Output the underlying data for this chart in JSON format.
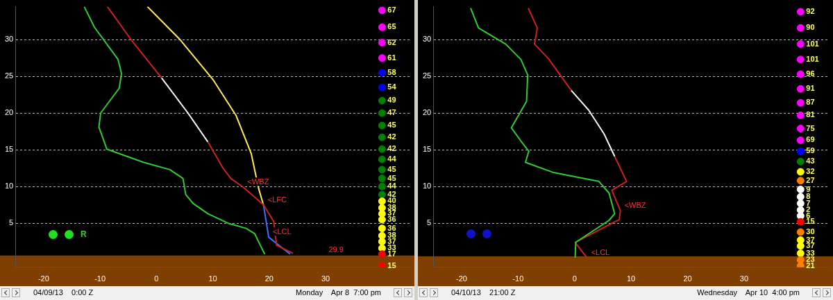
{
  "chart_data": [
    {
      "type": "line",
      "xlim": [
        -25,
        45
      ],
      "ylim": [
        -1,
        34.5
      ],
      "xticks": [
        -20,
        -10,
        0,
        10,
        20,
        30
      ],
      "yticks": [
        5,
        10,
        15,
        20,
        25,
        30
      ],
      "grid": "y",
      "legend": false,
      "marker": "none",
      "bands": [
        {
          "axis": "y",
          "from": -1,
          "to": 0.6,
          "color": "#7f3f00"
        }
      ],
      "series": [
        {
          "color": "#33cc33",
          "x": [
            -12.8,
            -11.0,
            -6.8,
            -6.2,
            -6.6,
            -9.9,
            -10.2,
            -8.8,
            -2.3,
            2.4,
            4.7,
            5.2,
            6.5,
            9.1,
            12.7,
            15.9,
            17.4,
            18.6,
            19.2
          ],
          "values": [
            34.5,
            31.7,
            27.3,
            25.4,
            23.4,
            20,
            18.1,
            15.1,
            13.3,
            12.3,
            11.1,
            8.9,
            7.7,
            6.3,
            5.0,
            4.3,
            3.6,
            1.7,
            0.8
          ]
        },
        {
          "color": "#cc2222",
          "x": [
            -8.7,
            -4.5,
            0.9
          ],
          "values": [
            34.5,
            30,
            24.8
          ]
        },
        {
          "color": "#ffffff",
          "x": [
            0.9,
            5.6,
            9.1
          ],
          "values": [
            24.8,
            20,
            16.1
          ]
        },
        {
          "color": "#cc2222",
          "x": [
            9.1,
            11.8,
            13.2,
            15.4,
            19.0,
            20.8,
            21.3,
            24.2
          ],
          "values": [
            16.1,
            12.5,
            11.1,
            9.9,
            7.5,
            5.2,
            2.0,
            0.9
          ]
        },
        {
          "color": "#ffee55",
          "x": [
            -1.6,
            4.2,
            10.0,
            14.1,
            16.8,
            18.1,
            19.0
          ],
          "values": [
            34.5,
            30,
            24.6,
            19.7,
            14.5,
            9.8,
            7.4
          ]
        },
        {
          "color": "#3377ff",
          "x": [
            19.0,
            19.9,
            23.7
          ],
          "values": [
            7.4,
            3.1,
            0.8
          ]
        },
        {
          "type": "scatter",
          "marker": "circle",
          "x": [
            40,
            40,
            40,
            40,
            40,
            40,
            40,
            40,
            40,
            40,
            40,
            40,
            40,
            40,
            40,
            40,
            40,
            40,
            40,
            40,
            40,
            40,
            40,
            40,
            40,
            40
          ],
          "values": [
            34.0,
            31.7,
            29.6,
            27.5,
            25.5,
            23.5,
            21.7,
            20.0,
            18.3,
            16.7,
            15.1,
            13.7,
            12.3,
            11.1,
            10.0,
            8.9,
            8.0,
            7.1,
            6.3,
            5.5,
            4.3,
            3.3,
            2.5,
            1.6,
            0.8,
            -0.8
          ],
          "colors": [
            "#ff00ff",
            "#ff00ff",
            "#ff00ff",
            "#ff00ff",
            "#0000ff",
            "#0000ff",
            "#008000",
            "#008000",
            "#008000",
            "#008000",
            "#008000",
            "#008000",
            "#008000",
            "#008000",
            "#008000",
            "#008000",
            "#ffff00",
            "#ffff00",
            "#ffff00",
            "#ffff00",
            "#ffff00",
            "#ffff00",
            "#ffff00",
            "#ffff00",
            "#ff0000",
            "#ff0000"
          ]
        }
      ],
      "annotations": [
        "04/09/13    0:00 Z",
        "Monday    Apr 8  7:00 pm",
        "R",
        {
          "text": "<WBZ",
          "x": 15.4,
          "y": 9.9
        },
        {
          "text": "<LFC",
          "x": 19.0,
          "y": 7.4
        },
        {
          "text": "<LCL",
          "x": 19.9,
          "y": 3.1
        },
        {
          "text": "29.9",
          "x": 29.8,
          "y": 0.6
        },
        {
          "text": "67",
          "x": 40,
          "y": 34.0
        },
        {
          "text": "65",
          "x": 40,
          "y": 31.7
        },
        {
          "text": "62",
          "x": 40,
          "y": 29.6
        },
        {
          "text": "61",
          "x": 40,
          "y": 27.5
        },
        {
          "text": "58",
          "x": 40,
          "y": 25.5
        },
        {
          "text": "54",
          "x": 40,
          "y": 23.5
        },
        {
          "text": "49",
          "x": 40,
          "y": 21.7
        },
        {
          "text": "47",
          "x": 40,
          "y": 20.0
        },
        {
          "text": "45",
          "x": 40,
          "y": 18.3
        },
        {
          "text": "42",
          "x": 40,
          "y": 16.7
        },
        {
          "text": "42",
          "x": 40,
          "y": 15.1
        },
        {
          "text": "44",
          "x": 40,
          "y": 13.7
        },
        {
          "text": "45",
          "x": 40,
          "y": 12.3
        },
        {
          "text": "45",
          "x": 40,
          "y": 11.1
        },
        {
          "text": "44",
          "x": 40,
          "y": 10.0
        },
        {
          "text": "42",
          "x": 40,
          "y": 8.9
        },
        {
          "text": "40",
          "x": 40,
          "y": 8.0
        },
        {
          "text": "38",
          "x": 40,
          "y": 7.1
        },
        {
          "text": "37",
          "x": 40,
          "y": 6.3
        },
        {
          "text": "36",
          "x": 40,
          "y": 5.5
        },
        {
          "text": "36",
          "x": 40,
          "y": 4.3
        },
        {
          "text": "38",
          "x": 40,
          "y": 3.3
        },
        {
          "text": "37",
          "x": 40,
          "y": 2.5
        },
        {
          "text": "33",
          "x": 40,
          "y": 1.6
        },
        {
          "text": "17",
          "x": 40,
          "y": 0.8
        },
        {
          "text": "15",
          "x": 40,
          "y": -0.8
        }
      ]
    },
    {
      "type": "line",
      "xlim": [
        -25,
        45
      ],
      "ylim": [
        -1,
        34.5
      ],
      "xticks": [
        -20,
        -10,
        0,
        10,
        20,
        30
      ],
      "yticks": [
        5,
        10,
        15,
        20,
        25,
        30
      ],
      "grid": "y",
      "legend": false,
      "marker": "none",
      "bands": [
        {
          "axis": "y",
          "from": -1,
          "to": 0.5,
          "color": "#7f3f00"
        }
      ],
      "series": [
        {
          "color": "#33cc33",
          "x": [
            -18.4,
            -17.0,
            -12.2,
            -9.5,
            -8.3,
            -8.5,
            -11.2,
            -9.5,
            -8.1,
            -8.7,
            -3.7,
            4.3,
            6.1,
            7.1,
            6.1,
            0.2,
            0.1
          ],
          "values": [
            34.3,
            31.6,
            29.4,
            27.3,
            25.2,
            21.6,
            18.0,
            16.2,
            14.8,
            13.3,
            11.9,
            10.7,
            9.1,
            6.3,
            5.4,
            2.4,
            0.3
          ]
        },
        {
          "color": "#cc2222",
          "x": [
            -8.2,
            -6.6,
            -7.1,
            -4.6,
            -0.6
          ],
          "values": [
            34.3,
            31.6,
            29.4,
            27.4,
            23.1
          ]
        },
        {
          "color": "#ffffff",
          "x": [
            -0.6,
            2.5,
            5.2,
            7.1
          ],
          "values": [
            23.1,
            20.4,
            17.2,
            14.1
          ]
        },
        {
          "color": "#cc2222",
          "x": [
            7.1,
            9.2,
            6.6,
            8.1,
            7.9,
            0.1,
            2.2
          ],
          "values": [
            14.1,
            10.7,
            9.5,
            6.7,
            5.5,
            2.4,
            0.3
          ]
        },
        {
          "type": "scatter",
          "marker": "circle",
          "x": [
            40,
            40,
            40,
            40,
            40,
            40,
            40,
            40,
            40,
            40,
            40,
            40,
            40,
            40,
            40,
            40,
            40,
            40,
            40,
            40,
            40,
            40,
            40,
            40,
            40,
            40
          ],
          "values": [
            33.8,
            31.6,
            29.4,
            27.3,
            25.3,
            23.3,
            21.4,
            19.7,
            17.9,
            16.3,
            14.8,
            13.4,
            12.0,
            10.8,
            9.6,
            8.6,
            7.7,
            6.8,
            6.0,
            5.2,
            3.8,
            2.7,
            1.9,
            0.9,
            0.0,
            -0.8
          ],
          "colors": [
            "#ff00ff",
            "#ff00ff",
            "#ff00ff",
            "#ff00ff",
            "#ff00ff",
            "#ff00ff",
            "#ff00ff",
            "#ff00ff",
            "#ff00ff",
            "#ff00ff",
            "#0000ff",
            "#008000",
            "#ffff00",
            "#ff8000",
            "#ffffff",
            "#ffffff",
            "#ffffff",
            "#ffffff",
            "#ffffff",
            "#ff0000",
            "#ff8000",
            "#ffff00",
            "#ffff00",
            "#ffff00",
            "#ff8000",
            "#ff8000"
          ]
        }
      ],
      "annotations": [
        "04/10/13    21:00 Z",
        "Wednesday    Apr 10  4:00 pm",
        {
          "text": "<WBZ",
          "x": 8.1,
          "y": 6.7
        },
        {
          "text": "<LCL",
          "x": 2.2,
          "y": 0.3
        },
        {
          "text": "92",
          "x": 40,
          "y": 33.8
        },
        {
          "text": "90",
          "x": 40,
          "y": 31.6
        },
        {
          "text": "101",
          "x": 40,
          "y": 29.4
        },
        {
          "text": "101",
          "x": 40,
          "y": 27.3
        },
        {
          "text": "96",
          "x": 40,
          "y": 25.3
        },
        {
          "text": "91",
          "x": 40,
          "y": 23.3
        },
        {
          "text": "87",
          "x": 40,
          "y": 21.4
        },
        {
          "text": "81",
          "x": 40,
          "y": 19.7
        },
        {
          "text": "75",
          "x": 40,
          "y": 17.9
        },
        {
          "text": "69",
          "x": 40,
          "y": 16.3
        },
        {
          "text": "59",
          "x": 40,
          "y": 14.8
        },
        {
          "text": "43",
          "x": 40,
          "y": 13.4
        },
        {
          "text": "32",
          "x": 40,
          "y": 12.0
        },
        {
          "text": "27",
          "x": 40,
          "y": 10.8
        },
        {
          "text": "9",
          "x": 40,
          "y": 9.6
        },
        {
          "text": "8",
          "x": 40,
          "y": 8.6
        },
        {
          "text": "7",
          "x": 40,
          "y": 7.7
        },
        {
          "text": "2",
          "x": 40,
          "y": 6.8
        },
        {
          "text": "6",
          "x": 40,
          "y": 6.0
        },
        {
          "text": "15",
          "x": 40,
          "y": 5.2
        },
        {
          "text": "30",
          "x": 40,
          "y": 3.8
        },
        {
          "text": "37",
          "x": 40,
          "y": 2.7
        },
        {
          "text": "37",
          "x": 40,
          "y": 1.9
        },
        {
          "text": "33",
          "x": 40,
          "y": 0.9
        },
        {
          "text": "23",
          "x": 40,
          "y": 0.0
        },
        {
          "text": "21",
          "x": 40,
          "y": -0.8
        }
      ]
    }
  ]
}
